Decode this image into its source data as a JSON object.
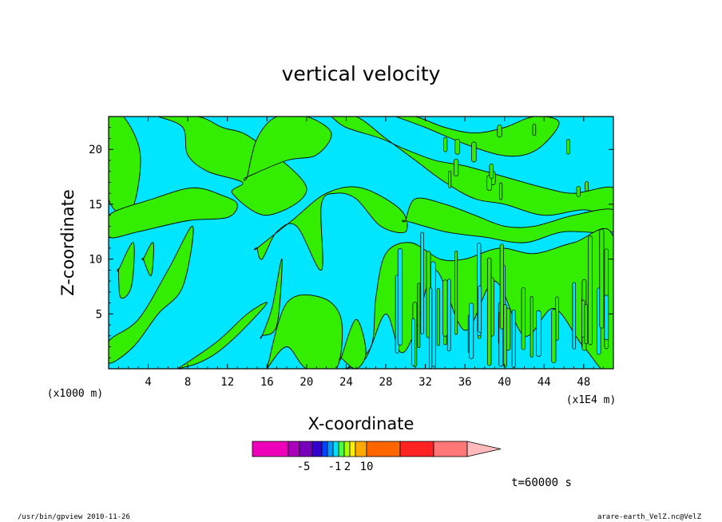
{
  "chart_data": {
    "type": "heatmap",
    "title": "vertical velocity",
    "xlabel": "X-coordinate",
    "ylabel": "Z-coordinate",
    "x_unit_left": "(x1000 m)",
    "x_unit_right": "(x1E4 m)",
    "xlim": [
      0,
      51
    ],
    "ylim": [
      0,
      23
    ],
    "x_ticks": [
      4,
      8,
      12,
      16,
      20,
      24,
      28,
      32,
      36,
      40,
      44,
      48
    ],
    "y_ticks": [
      5,
      10,
      15,
      20
    ],
    "background_color": "#00e6ff",
    "green_regions": [
      {
        "x": [
          0.0,
          2.3,
          3.2,
          1.5,
          0.0
        ],
        "y": [
          15.5,
          14.5,
          19.5,
          23.0,
          23.0
        ]
      },
      {
        "x": [
          5.0,
          7.5,
          8.0,
          10.0,
          13.5,
          12.5,
          16.0,
          20.0,
          14.5,
          11.5,
          9.0,
          5.0
        ],
        "y": [
          23.0,
          22.0,
          19.5,
          18.0,
          17.0,
          16.0,
          14.0,
          16.5,
          21.0,
          22.0,
          23.0,
          23.0
        ]
      },
      {
        "x": [
          0.0,
          4.5,
          8.5,
          11.5,
          13.0,
          12.0,
          8.0,
          3.0,
          0.0
        ],
        "y": [
          14.0,
          15.5,
          16.5,
          15.8,
          15.0,
          13.8,
          13.5,
          12.5,
          12.0
        ]
      },
      {
        "x": [
          14.0,
          18.0,
          21.0,
          22.5,
          20.0,
          17.0,
          15.0,
          14.0
        ],
        "y": [
          17.5,
          19.0,
          19.5,
          21.5,
          23.0,
          23.0,
          21.0,
          17.5
        ]
      },
      {
        "x": [
          22.5,
          25.0,
          28.0,
          31.0,
          34.0,
          37.0,
          40.0,
          44.0,
          48.0,
          51.0,
          51.0,
          47.0,
          44.0,
          40.0,
          36.0,
          33.0,
          30.0,
          27.5,
          24.0,
          22.5
        ],
        "y": [
          23.0,
          23.0,
          21.0,
          19.0,
          17.0,
          15.5,
          15.0,
          14.0,
          14.5,
          14.0,
          16.5,
          16.0,
          16.5,
          17.5,
          18.5,
          19.0,
          20.0,
          21.0,
          22.0,
          23.0
        ]
      },
      {
        "x": [
          29.0,
          32.0,
          36.0,
          39.5,
          42.0,
          44.0,
          45.5,
          43.0,
          40.0,
          37.0,
          34.0,
          31.0,
          29.0
        ],
        "y": [
          23.0,
          22.0,
          20.5,
          19.5,
          19.5,
          20.5,
          22.5,
          23.0,
          22.0,
          21.5,
          22.0,
          23.0,
          23.0
        ]
      },
      {
        "x": [
          15.0,
          18.5,
          22.0,
          25.5,
          29.5,
          30.0,
          27.5,
          25.0,
          23.0,
          21.5,
          21.5,
          19.0,
          17.0,
          15.5,
          15.0
        ],
        "y": [
          11.0,
          13.5,
          16.0,
          16.5,
          14.5,
          12.5,
          13.0,
          15.5,
          16.0,
          15.0,
          9.0,
          13.0,
          12.5,
          10.0,
          11.0
        ]
      },
      {
        "x": [
          30.0,
          34.0,
          38.0,
          42.0,
          46.0,
          51.0,
          51.0,
          47.0,
          43.0,
          40.0,
          37.0,
          34.0,
          31.0,
          30.0
        ],
        "y": [
          13.5,
          12.5,
          12.0,
          11.5,
          12.5,
          12.5,
          14.5,
          14.0,
          13.0,
          13.0,
          14.0,
          15.0,
          15.5,
          13.5
        ]
      },
      {
        "x": [
          0.0,
          3.0,
          6.0,
          8.5,
          7.5,
          5.0,
          2.5,
          0.0
        ],
        "y": [
          2.5,
          4.5,
          9.0,
          13.0,
          7.5,
          5.0,
          2.0,
          0.5
        ]
      },
      {
        "x": [
          1.0,
          2.5,
          2.3,
          1.2,
          1.0
        ],
        "y": [
          9.0,
          11.5,
          7.5,
          6.5,
          9.0
        ]
      },
      {
        "x": [
          3.5,
          4.5,
          4.3,
          3.5
        ],
        "y": [
          10.0,
          11.5,
          8.5,
          10.0
        ]
      },
      {
        "x": [
          15.5,
          16.5,
          17.5,
          17.0,
          15.5
        ],
        "y": [
          3.0,
          5.5,
          10.0,
          4.0,
          3.0
        ]
      },
      {
        "x": [
          7.0,
          11.0,
          14.0,
          16.0,
          13.5,
          11.0,
          9.0,
          7.0
        ],
        "y": [
          0.0,
          2.5,
          5.0,
          6.0,
          3.5,
          1.5,
          0.5,
          0.0
        ]
      },
      {
        "x": [
          16.0,
          18.0,
          21.5,
          23.5,
          23.0,
          20.0,
          18.0,
          16.0
        ],
        "y": [
          0.0,
          6.0,
          6.5,
          4.5,
          0.0,
          0.0,
          2.0,
          0.0
        ]
      },
      {
        "x": [
          24.0,
          26.5,
          27.0,
          28.0,
          30.5,
          33.5,
          36.0,
          39.5,
          43.0,
          47.0,
          51.0,
          51.0,
          48.0,
          45.0,
          42.0,
          39.0,
          36.0,
          33.0,
          31.0,
          29.5,
          28.0,
          26.0,
          24.0
        ],
        "y": [
          0.0,
          2.0,
          6.5,
          10.5,
          11.5,
          10.0,
          10.0,
          11.0,
          10.5,
          11.5,
          12.0,
          0.0,
          2.0,
          5.5,
          3.0,
          8.0,
          3.5,
          9.0,
          3.5,
          1.5,
          5.0,
          1.0,
          0.0
        ]
      },
      {
        "x": [
          23.5,
          25.0,
          26.0,
          25.0,
          23.5
        ],
        "y": [
          1.0,
          4.5,
          1.5,
          0.0,
          1.0
        ]
      }
    ],
    "colorbar": {
      "colors": [
        "#ee00bb",
        "#aa00bb",
        "#7700bb",
        "#3300cc",
        "#0044ff",
        "#0099ff",
        "#00ddff",
        "#44ff44",
        "#aaff00",
        "#ffee00",
        "#ffaa00",
        "#ff6600",
        "#ff2222",
        "#ff7777",
        "#ffbbbb"
      ],
      "labels": [
        "-5",
        "-1",
        "2",
        "10"
      ]
    },
    "time_label": "t=60000 s"
  },
  "footer": {
    "left": "/usr/bin/gpview  2010-11-26",
    "right": "arare-earth_VelZ.nc@VelZ"
  }
}
